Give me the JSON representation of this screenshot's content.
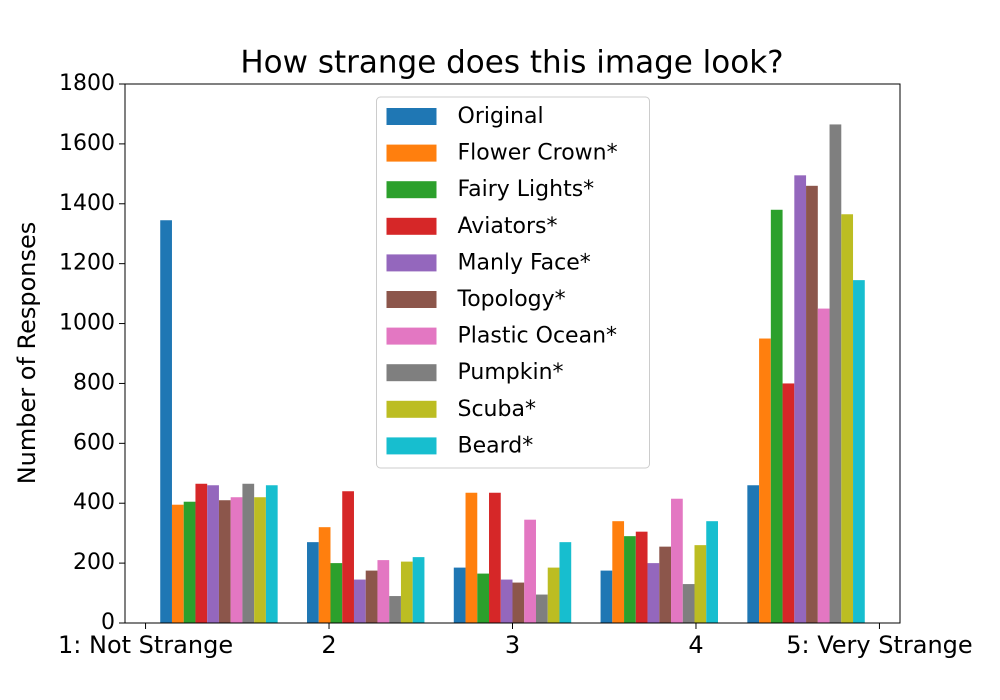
{
  "chart_data": {
    "type": "bar",
    "title": "How strange does this image look?",
    "ylabel": "Number of Responses",
    "series": [
      {
        "name": "Original",
        "color": "#1f77b4",
        "values": [
          1345,
          270,
          185,
          175,
          460
        ]
      },
      {
        "name": "Flower Crown*",
        "color": "#ff7f0e",
        "values": [
          395,
          320,
          435,
          340,
          950
        ]
      },
      {
        "name": "Fairy Lights*",
        "color": "#2ca02c",
        "values": [
          405,
          200,
          165,
          290,
          1380
        ]
      },
      {
        "name": "Aviators*",
        "color": "#d62728",
        "values": [
          465,
          440,
          435,
          305,
          800
        ]
      },
      {
        "name": "Manly Face*",
        "color": "#9467bd",
        "values": [
          460,
          145,
          145,
          200,
          1495
        ]
      },
      {
        "name": "Topology*",
        "color": "#8c564b",
        "values": [
          410,
          175,
          135,
          255,
          1460
        ]
      },
      {
        "name": "Plastic Ocean*",
        "color": "#e377c2",
        "values": [
          420,
          210,
          345,
          415,
          1050
        ]
      },
      {
        "name": "Pumpkin*",
        "color": "#7f7f7f",
        "values": [
          465,
          90,
          95,
          130,
          1665
        ]
      },
      {
        "name": "Scuba*",
        "color": "#bcbd22",
        "values": [
          420,
          205,
          185,
          260,
          1365
        ]
      },
      {
        "name": "Beard*",
        "color": "#17becf",
        "values": [
          460,
          220,
          270,
          340,
          1145
        ]
      }
    ],
    "xlim": [
      -0.24,
      5.04
    ],
    "xticks": [
      {
        "value": -0.1,
        "label": "1: Not Strange"
      },
      {
        "value": 1.15,
        "label": "2"
      },
      {
        "value": 2.4,
        "label": "3"
      },
      {
        "value": 3.65,
        "label": "4"
      },
      {
        "value": 4.9,
        "label": "5: Very Strange"
      }
    ],
    "ylim": [
      0,
      1800
    ],
    "yticks": [
      0,
      200,
      400,
      600,
      800,
      1000,
      1200,
      1400,
      1600,
      1800
    ],
    "legend": "upper center"
  }
}
